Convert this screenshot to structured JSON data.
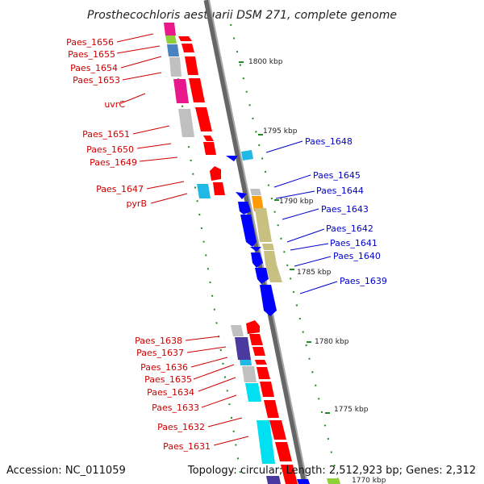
{
  "title": "Prosthecochloris aestuarii DSM 271, complete genome",
  "accession": "Accession: NC_011059",
  "summary": "Topology: circular; Length: 2,512,923 bp; Genes: 2,312",
  "left_labels": [
    "Paes_1656",
    "Paes_1655",
    "Paes_1654",
    "Paes_1653",
    "uvrC",
    "Paes_1651",
    "Paes_1650",
    "Paes_1649",
    "Paes_1647",
    "pyrB",
    "Paes_1638",
    "Paes_1637",
    "Paes_1636",
    "Paes_1635",
    "Paes_1634",
    "Paes_1633",
    "Paes_1632",
    "Paes_1631"
  ],
  "right_labels": [
    "Paes_1648",
    "Paes_1645",
    "Paes_1644",
    "Paes_1643",
    "Paes_1642",
    "Paes_1641",
    "Paes_1640",
    "Paes_1639"
  ],
  "kbp_labels": [
    "1800 kbp",
    "1795 kbp",
    "1790 kbp",
    "1785 kbp",
    "1780 kbp",
    "1775 kbp",
    "1770 kbp"
  ],
  "colors": {
    "forward_strand": "#ff0000",
    "reverse_strand": "#0000ff",
    "backbone": "#888888",
    "dots": "#228b22",
    "left_label": "#cc0000",
    "right_label": "#0000cc"
  }
}
